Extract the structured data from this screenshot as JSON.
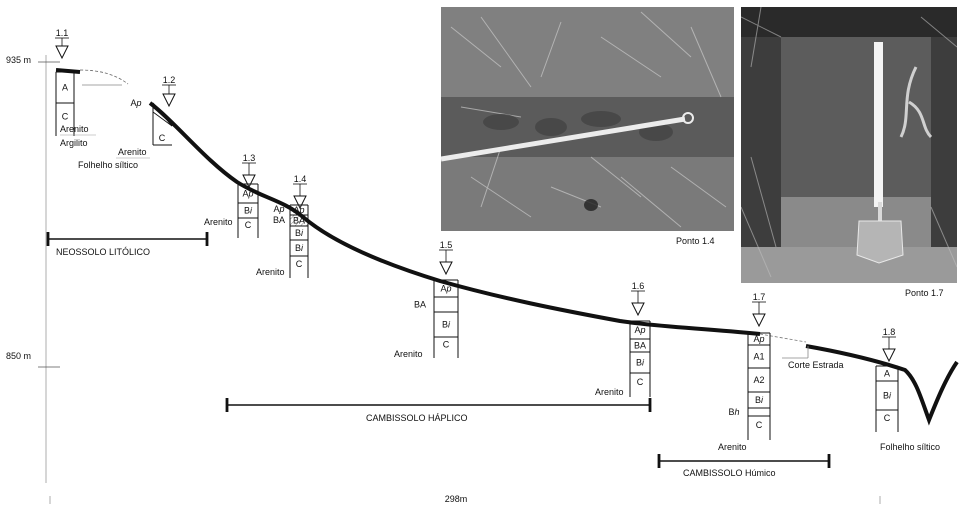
{
  "elevation": {
    "top": "935 m",
    "bottom": "850 m"
  },
  "distance": "298m",
  "photos": [
    {
      "caption": "Ponto 1.4"
    },
    {
      "caption": "Ponto 1.7"
    }
  ],
  "classes": [
    {
      "label": "NEOSSOLO LITÓLICO"
    },
    {
      "label": "CAMBISSOLO HÁPLICO"
    },
    {
      "label": "CAMBISSOLO Húmico"
    }
  ],
  "labels": {
    "corte_estrada": "Corte Estrada"
  },
  "profiles": [
    {
      "id": "1.1",
      "horizons": [
        "A",
        "C"
      ],
      "notes": [
        "Arenito",
        "Argilito"
      ]
    },
    {
      "id": "1.2",
      "horizons": [
        "Ap",
        "C"
      ],
      "notes": [
        "Arenito",
        "Folhelho síltico"
      ]
    },
    {
      "id": "1.3",
      "horizons": [
        "Ap",
        "Bi",
        "C"
      ],
      "notes": [
        "Arenito"
      ]
    },
    {
      "id": "1.4",
      "horizons": [
        "Ap",
        "BA",
        "Bi",
        "Bi",
        "C"
      ],
      "notes": [
        "Arenito"
      ]
    },
    {
      "id": "1.5",
      "horizons": [
        "Ap",
        "BA",
        "Bi",
        "C"
      ],
      "notes": [
        "Arenito"
      ]
    },
    {
      "id": "1.6",
      "horizons": [
        "Ap",
        "BA",
        "Bi",
        "C"
      ],
      "notes": [
        "Arenito"
      ]
    },
    {
      "id": "1.7",
      "horizons": [
        "Ap",
        "A1",
        "A2",
        "Bi",
        "Bh",
        "C"
      ],
      "notes": [
        "Arenito"
      ]
    },
    {
      "id": "1.8",
      "horizons": [
        "A",
        "Bi",
        "C"
      ],
      "notes": [
        "Folhelho síltico"
      ]
    }
  ]
}
